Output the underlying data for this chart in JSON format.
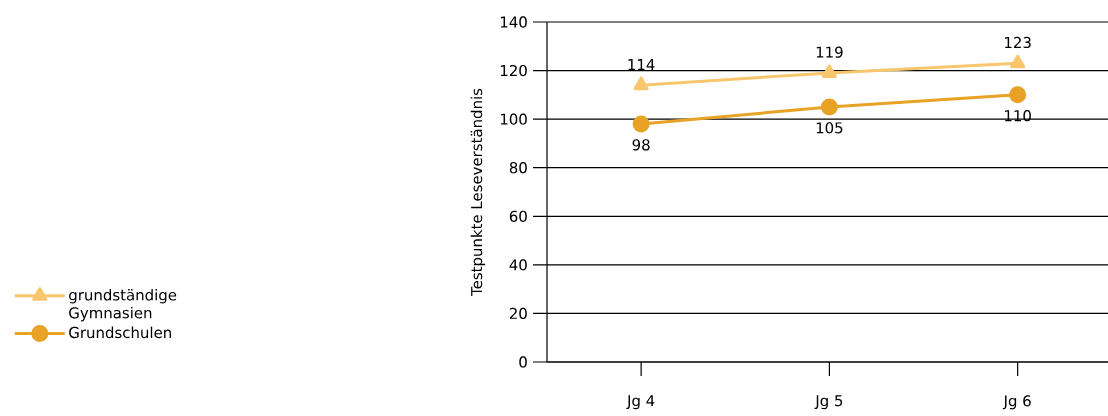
{
  "chart_data": {
    "type": "line",
    "ylabel": "Testpunkte Leseverständnis",
    "categories": [
      "Jg 4",
      "Jg 5",
      "Jg 6"
    ],
    "series": [
      {
        "name": "grundständige Gymnasien",
        "color": "#f8c66c",
        "marker": "triangle",
        "values": [
          114,
          119,
          123
        ]
      },
      {
        "name": "Grundschulen",
        "color": "#e8a226",
        "marker": "circle",
        "values": [
          98,
          105,
          110
        ]
      }
    ],
    "ylim": [
      0,
      140
    ],
    "yticks": [
      0,
      20,
      40,
      60,
      80,
      100,
      120,
      140
    ],
    "grid": "y",
    "legend": "left",
    "data_labels": true,
    "line_style": "solid"
  }
}
